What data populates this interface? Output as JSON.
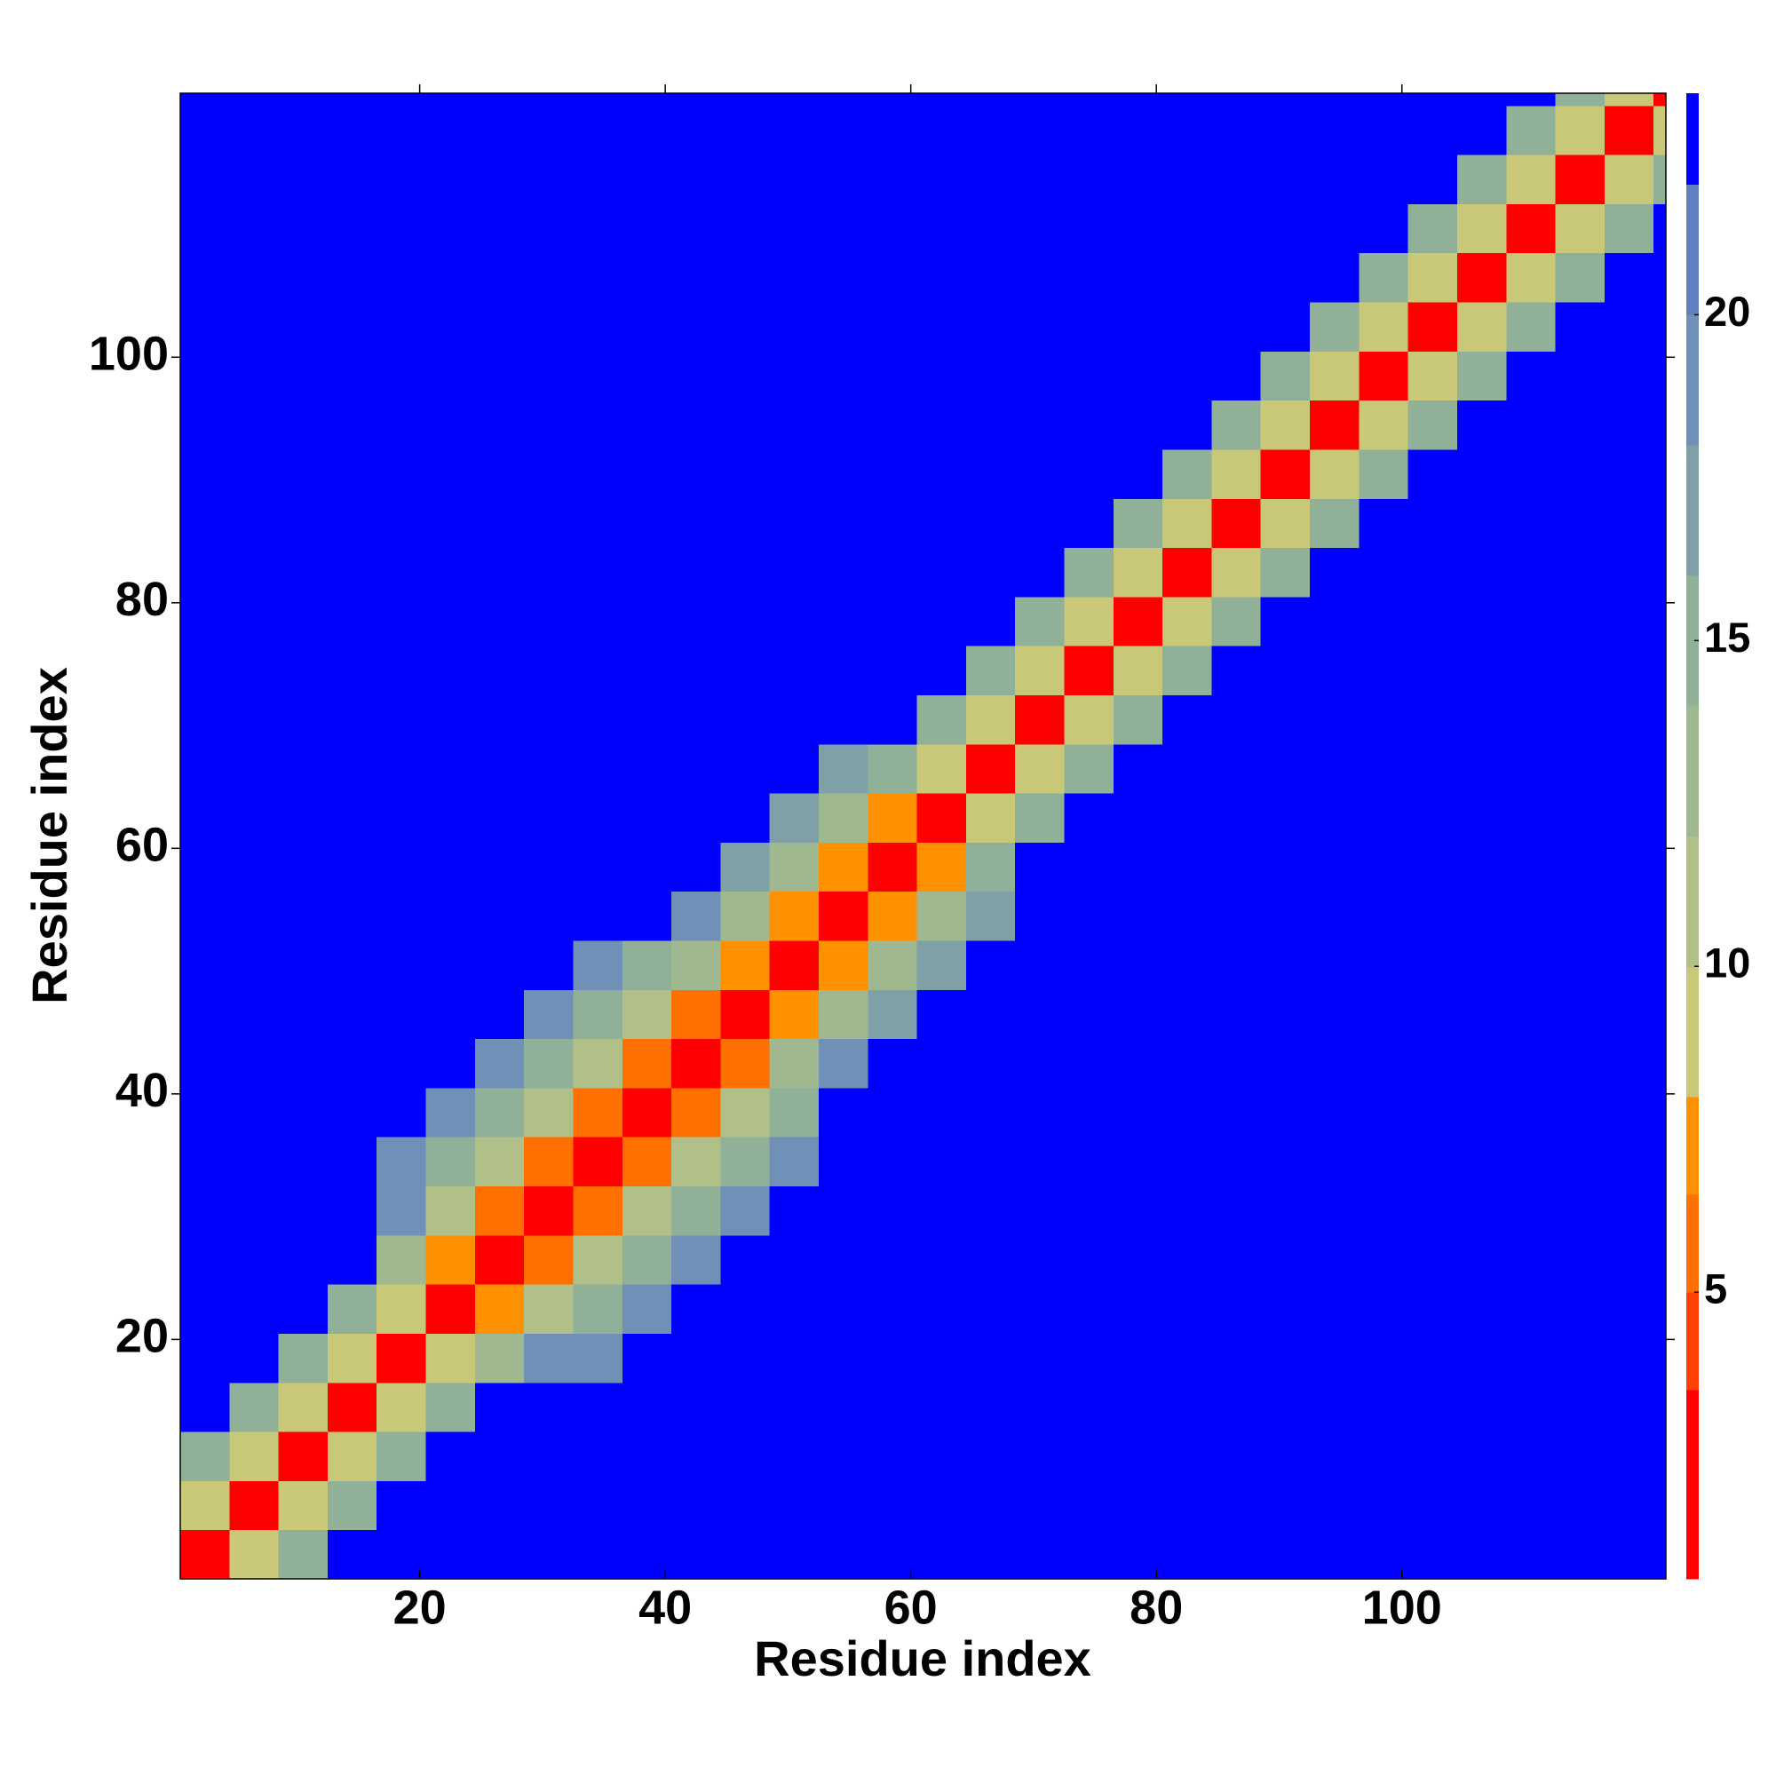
{
  "chart_data": {
    "type": "heatmap",
    "xlabel": "Residue index",
    "ylabel": "Residue index",
    "xbins": [
      0.5,
      4.5,
      8.5,
      12.5,
      16.5,
      20.5,
      24.5,
      28.5,
      32.5,
      36.5,
      40.5,
      44.5,
      48.5,
      52.5,
      56.5,
      60.5,
      64.5,
      68.5,
      72.5,
      76.5,
      80.5,
      84.5,
      88.5,
      92.5,
      96.5,
      100.5,
      104.5,
      108.5,
      112.5,
      116.5,
      120.5,
      121.5
    ],
    "ybins": [
      0.5,
      4.5,
      8.5,
      12.5,
      16.5,
      20.5,
      24.5,
      28.5,
      32.5,
      36.5,
      40.5,
      44.5,
      48.5,
      52.5,
      56.5,
      60.5,
      64.5,
      68.5,
      72.5,
      76.5,
      80.5,
      84.5,
      88.5,
      92.5,
      96.5,
      100.5,
      104.5,
      108.5,
      112.5,
      116.5,
      120.5,
      121.5
    ],
    "xlim": [
      0.5,
      121.5
    ],
    "ylim": [
      0.5,
      121.5
    ],
    "xticks": [
      20,
      40,
      60,
      80,
      100
    ],
    "yticks": [
      20,
      40,
      60,
      80,
      100
    ],
    "z": [
      [
        3,
        9,
        16,
        23,
        23,
        23,
        23,
        23,
        23,
        23,
        23,
        23,
        23,
        23,
        23,
        23,
        23,
        23,
        23,
        23,
        23,
        23,
        23,
        23,
        23,
        23,
        23,
        23,
        23,
        23,
        23
      ],
      [
        9,
        3,
        9,
        16,
        23,
        23,
        23,
        23,
        23,
        23,
        23,
        23,
        23,
        23,
        23,
        23,
        23,
        23,
        23,
        23,
        23,
        23,
        23,
        23,
        23,
        23,
        23,
        23,
        23,
        23,
        23
      ],
      [
        16,
        9,
        3,
        9,
        16,
        23,
        23,
        23,
        23,
        23,
        23,
        23,
        23,
        23,
        23,
        23,
        23,
        23,
        23,
        23,
        23,
        23,
        23,
        23,
        23,
        23,
        23,
        23,
        23,
        23,
        23
      ],
      [
        23,
        16,
        9,
        3,
        9,
        16,
        23,
        23,
        23,
        23,
        23,
        23,
        23,
        23,
        23,
        23,
        23,
        23,
        23,
        23,
        23,
        23,
        23,
        23,
        23,
        23,
        23,
        23,
        23,
        23,
        23
      ],
      [
        23,
        23,
        16,
        9,
        3,
        9,
        13,
        19,
        19,
        23,
        23,
        23,
        23,
        23,
        23,
        23,
        23,
        23,
        23,
        23,
        23,
        23,
        23,
        23,
        23,
        23,
        23,
        23,
        23,
        23,
        23
      ],
      [
        23,
        23,
        23,
        16,
        9,
        3,
        7,
        11,
        15,
        19,
        23,
        23,
        23,
        23,
        23,
        23,
        23,
        23,
        23,
        23,
        23,
        23,
        23,
        23,
        23,
        23,
        23,
        23,
        23,
        23,
        23
      ],
      [
        23,
        23,
        23,
        23,
        13,
        7,
        3,
        6,
        11,
        15,
        19,
        23,
        23,
        23,
        23,
        23,
        23,
        23,
        23,
        23,
        23,
        23,
        23,
        23,
        23,
        23,
        23,
        23,
        23,
        23,
        23
      ],
      [
        23,
        23,
        23,
        23,
        19,
        11,
        6,
        3,
        6,
        11,
        15,
        19,
        23,
        23,
        23,
        23,
        23,
        23,
        23,
        23,
        23,
        23,
        23,
        23,
        23,
        23,
        23,
        23,
        23,
        23,
        23
      ],
      [
        23,
        23,
        23,
        23,
        19,
        15,
        11,
        6,
        3,
        6,
        11,
        15,
        19,
        23,
        23,
        23,
        23,
        23,
        23,
        23,
        23,
        23,
        23,
        23,
        23,
        23,
        23,
        23,
        23,
        23,
        23
      ],
      [
        23,
        23,
        23,
        23,
        23,
        19,
        15,
        11,
        6,
        3,
        6,
        11,
        15,
        23,
        23,
        23,
        23,
        23,
        23,
        23,
        23,
        23,
        23,
        23,
        23,
        23,
        23,
        23,
        23,
        23,
        23
      ],
      [
        23,
        23,
        23,
        23,
        23,
        23,
        19,
        15,
        11,
        6,
        3,
        6,
        13,
        19,
        23,
        23,
        23,
        23,
        23,
        23,
        23,
        23,
        23,
        23,
        23,
        23,
        23,
        23,
        23,
        23,
        23
      ],
      [
        23,
        23,
        23,
        23,
        23,
        23,
        23,
        19,
        15,
        11,
        6,
        3,
        7,
        14,
        18,
        23,
        23,
        23,
        23,
        23,
        23,
        23,
        23,
        23,
        23,
        23,
        23,
        23,
        23,
        23,
        23
      ],
      [
        23,
        23,
        23,
        23,
        23,
        23,
        23,
        23,
        19,
        15,
        13,
        7,
        3,
        8,
        14,
        18,
        23,
        23,
        23,
        23,
        23,
        23,
        23,
        23,
        23,
        23,
        23,
        23,
        23,
        23,
        23
      ],
      [
        23,
        23,
        23,
        23,
        23,
        23,
        23,
        23,
        23,
        23,
        19,
        14,
        8,
        3,
        8,
        14,
        18,
        23,
        23,
        23,
        23,
        23,
        23,
        23,
        23,
        23,
        23,
        23,
        23,
        23,
        23
      ],
      [
        23,
        23,
        23,
        23,
        23,
        23,
        23,
        23,
        23,
        23,
        23,
        18,
        14,
        8,
        3,
        8,
        16,
        23,
        23,
        23,
        23,
        23,
        23,
        23,
        23,
        23,
        23,
        23,
        23,
        23,
        23
      ],
      [
        23,
        23,
        23,
        23,
        23,
        23,
        23,
        23,
        23,
        23,
        23,
        23,
        18,
        14,
        8,
        3,
        9,
        16,
        23,
        23,
        23,
        23,
        23,
        23,
        23,
        23,
        23,
        23,
        23,
        23,
        23
      ],
      [
        23,
        23,
        23,
        23,
        23,
        23,
        23,
        23,
        23,
        23,
        23,
        23,
        23,
        18,
        16,
        9,
        3,
        9,
        16,
        23,
        23,
        23,
        23,
        23,
        23,
        23,
        23,
        23,
        23,
        23,
        23
      ],
      [
        23,
        23,
        23,
        23,
        23,
        23,
        23,
        23,
        23,
        23,
        23,
        23,
        23,
        23,
        23,
        16,
        9,
        3,
        9,
        16,
        23,
        23,
        23,
        23,
        23,
        23,
        23,
        23,
        23,
        23,
        23
      ],
      [
        23,
        23,
        23,
        23,
        23,
        23,
        23,
        23,
        23,
        23,
        23,
        23,
        23,
        23,
        23,
        23,
        16,
        9,
        3,
        9,
        16,
        23,
        23,
        23,
        23,
        23,
        23,
        23,
        23,
        23,
        23
      ],
      [
        23,
        23,
        23,
        23,
        23,
        23,
        23,
        23,
        23,
        23,
        23,
        23,
        23,
        23,
        23,
        23,
        23,
        16,
        9,
        3,
        9,
        16,
        23,
        23,
        23,
        23,
        23,
        23,
        23,
        23,
        23
      ],
      [
        23,
        23,
        23,
        23,
        23,
        23,
        23,
        23,
        23,
        23,
        23,
        23,
        23,
        23,
        23,
        23,
        23,
        23,
        16,
        9,
        3,
        9,
        16,
        23,
        23,
        23,
        23,
        23,
        23,
        23,
        23
      ],
      [
        23,
        23,
        23,
        23,
        23,
        23,
        23,
        23,
        23,
        23,
        23,
        23,
        23,
        23,
        23,
        23,
        23,
        23,
        23,
        16,
        9,
        3,
        9,
        16,
        23,
        23,
        23,
        23,
        23,
        23,
        23
      ],
      [
        23,
        23,
        23,
        23,
        23,
        23,
        23,
        23,
        23,
        23,
        23,
        23,
        23,
        23,
        23,
        23,
        23,
        23,
        23,
        23,
        16,
        9,
        3,
        9,
        16,
        23,
        23,
        23,
        23,
        23,
        23
      ],
      [
        23,
        23,
        23,
        23,
        23,
        23,
        23,
        23,
        23,
        23,
        23,
        23,
        23,
        23,
        23,
        23,
        23,
        23,
        23,
        23,
        23,
        16,
        9,
        3,
        9,
        16,
        23,
        23,
        23,
        23,
        23
      ],
      [
        23,
        23,
        23,
        23,
        23,
        23,
        23,
        23,
        23,
        23,
        23,
        23,
        23,
        23,
        23,
        23,
        23,
        23,
        23,
        23,
        23,
        23,
        16,
        9,
        3,
        9,
        16,
        23,
        23,
        23,
        23
      ],
      [
        23,
        23,
        23,
        23,
        23,
        23,
        23,
        23,
        23,
        23,
        23,
        23,
        23,
        23,
        23,
        23,
        23,
        23,
        23,
        23,
        23,
        23,
        23,
        16,
        9,
        3,
        9,
        16,
        23,
        23,
        23
      ],
      [
        23,
        23,
        23,
        23,
        23,
        23,
        23,
        23,
        23,
        23,
        23,
        23,
        23,
        23,
        23,
        23,
        23,
        23,
        23,
        23,
        23,
        23,
        23,
        23,
        16,
        9,
        3,
        9,
        16,
        23,
        23
      ],
      [
        23,
        23,
        23,
        23,
        23,
        23,
        23,
        23,
        23,
        23,
        23,
        23,
        23,
        23,
        23,
        23,
        23,
        23,
        23,
        23,
        23,
        23,
        23,
        23,
        23,
        16,
        9,
        3,
        9,
        16,
        23
      ],
      [
        23,
        23,
        23,
        23,
        23,
        23,
        23,
        23,
        23,
        23,
        23,
        23,
        23,
        23,
        23,
        23,
        23,
        23,
        23,
        23,
        23,
        23,
        23,
        23,
        23,
        23,
        16,
        9,
        3,
        9,
        16
      ],
      [
        23,
        23,
        23,
        23,
        23,
        23,
        23,
        23,
        23,
        23,
        23,
        23,
        23,
        23,
        23,
        23,
        23,
        23,
        23,
        23,
        23,
        23,
        23,
        23,
        23,
        23,
        23,
        16,
        9,
        3,
        9
      ],
      [
        23,
        23,
        23,
        23,
        23,
        23,
        23,
        23,
        23,
        23,
        23,
        23,
        23,
        23,
        23,
        23,
        23,
        23,
        23,
        23,
        23,
        23,
        23,
        23,
        23,
        23,
        23,
        23,
        16,
        9,
        3
      ]
    ],
    "colorbar": {
      "levels": [
        0.6,
        3.5,
        5,
        6.5,
        8,
        10,
        12,
        14,
        16,
        18,
        20,
        22,
        23.4
      ],
      "colors": [
        "#ff0000",
        "#ff4000",
        "#ff7000",
        "#ff9000",
        "#c8c878",
        "#b0c088",
        "#a0b890",
        "#90b098",
        "#80a0a8",
        "#7090b8",
        "#6080c0",
        "#0000ff"
      ],
      "ticks": [
        5,
        10,
        15,
        20
      ]
    }
  }
}
